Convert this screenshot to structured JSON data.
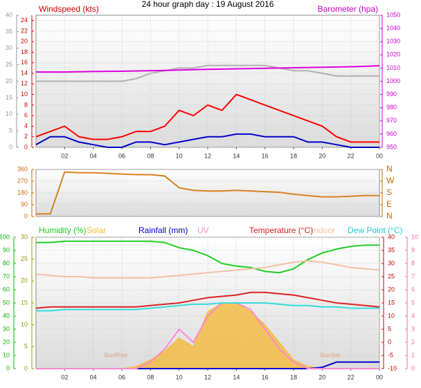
{
  "chart_data": [
    {
      "type": "line",
      "title": "24 hour graph day : 19 August 2016",
      "ylabel": "Windspeed (kts)",
      "y2label": "Barometer (hpa)",
      "x": [
        0,
        1,
        2,
        3,
        4,
        5,
        6,
        7,
        8,
        9,
        10,
        11,
        12,
        13,
        14,
        15,
        16,
        17,
        18,
        19,
        20,
        21,
        22,
        23,
        24
      ],
      "xlim": [
        0,
        24
      ],
      "xticks": [
        {
          "value": 2,
          "label": "02"
        },
        {
          "value": 4,
          "label": "04"
        },
        {
          "value": 6,
          "label": "06"
        },
        {
          "value": 8,
          "label": "08"
        },
        10,
        12,
        14,
        16,
        18,
        20,
        22,
        {
          "value": 24,
          "label": "00"
        }
      ],
      "ylim": [
        0,
        25
      ],
      "yticks": [
        0,
        2,
        4,
        6,
        8,
        10,
        12,
        14,
        16,
        18,
        20,
        22,
        24
      ],
      "y3lim": [
        0,
        40
      ],
      "y3ticks": [
        0,
        5,
        10,
        15,
        20,
        25,
        30,
        35,
        40
      ],
      "y2lim": [
        950,
        1050
      ],
      "y2ticks": [
        950,
        960,
        970,
        980,
        990,
        1000,
        1010,
        1020,
        1030,
        1040,
        1050
      ],
      "grid": true,
      "series": [
        {
          "color": "#b0b0b0",
          "axis": "y",
          "values": [
            12.5,
            12.5,
            12.5,
            12.5,
            12.5,
            12.5,
            12.5,
            13,
            14,
            14.5,
            15,
            15,
            15.5,
            15.5,
            15.5,
            15.5,
            15.5,
            15,
            14.5,
            14.5,
            14,
            13.5,
            13.5,
            13.5,
            13.5
          ]
        },
        {
          "color": "#dd00dd",
          "axis": "y2",
          "values": [
            1007,
            1007,
            1007,
            1007.2,
            1007.4,
            1007.5,
            1007.6,
            1007.8,
            1008,
            1008.2,
            1008.5,
            1008.8,
            1009,
            1009.2,
            1009.4,
            1009.6,
            1009.8,
            1010,
            1010.2,
            1010.4,
            1010.6,
            1010.8,
            1011,
            1011.3,
            1011.8
          ]
        },
        {
          "color": "#ff0000",
          "axis": "y",
          "values": [
            2,
            3,
            4,
            2,
            1.5,
            1.5,
            2,
            3,
            3,
            4,
            7,
            6,
            8,
            7,
            10,
            9,
            8,
            7,
            6,
            5,
            4,
            2,
            1,
            1,
            1
          ]
        },
        {
          "color": "#0000cc",
          "axis": "y",
          "values": [
            0.5,
            2,
            2,
            1,
            0.5,
            0,
            0,
            1,
            1,
            0.5,
            1,
            1.5,
            2,
            2,
            2.5,
            2.5,
            2,
            2,
            2,
            1,
            1,
            0.5,
            0,
            0,
            0
          ]
        }
      ]
    },
    {
      "type": "line",
      "x": [
        0,
        1,
        2,
        3,
        4,
        5,
        6,
        7,
        8,
        9,
        10,
        11,
        12,
        13,
        14,
        15,
        16,
        17,
        18,
        19,
        20,
        21,
        22,
        23,
        24
      ],
      "xlim": [
        0,
        24
      ],
      "ylim": [
        0,
        360
      ],
      "yticks": [
        0,
        90,
        180,
        270,
        360
      ],
      "y2lim": [
        0,
        360
      ],
      "y2ticks": [
        {
          "value": 0,
          "label": "N"
        },
        {
          "value": 90,
          "label": "E"
        },
        {
          "value": 180,
          "label": "S"
        },
        {
          "value": 270,
          "label": "W"
        },
        {
          "value": 360,
          "label": "N"
        }
      ],
      "grid": true,
      "series": [
        {
          "color": "#d98020",
          "axis": "y",
          "values": [
            20,
            20,
            340,
            335,
            335,
            330,
            325,
            320,
            320,
            310,
            220,
            200,
            195,
            195,
            200,
            195,
            190,
            185,
            170,
            160,
            150,
            150,
            155,
            160,
            160
          ]
        }
      ]
    },
    {
      "type": "line",
      "x": [
        0,
        1,
        2,
        3,
        4,
        5,
        6,
        7,
        8,
        9,
        10,
        11,
        12,
        13,
        14,
        15,
        16,
        17,
        18,
        19,
        20,
        21,
        22,
        23,
        24
      ],
      "xlim": [
        0,
        24
      ],
      "xticks": [
        {
          "value": 2,
          "label": "02"
        },
        {
          "value": 4,
          "label": "04"
        },
        {
          "value": 6,
          "label": "06"
        },
        {
          "value": 8,
          "label": "08"
        },
        10,
        12,
        14,
        16,
        18,
        20,
        22,
        {
          "value": 24,
          "label": "00"
        }
      ],
      "ylim": [
        0,
        100
      ],
      "yticks": [
        0,
        10,
        20,
        30,
        40,
        50,
        60,
        70,
        80,
        90,
        100
      ],
      "y3lim": [
        0,
        30
      ],
      "y3ticks": [
        0,
        5,
        10,
        15,
        20,
        25,
        30
      ],
      "y2lim": [
        -10,
        40
      ],
      "y2ticks": [
        -10,
        -5,
        0,
        5,
        10,
        15,
        20,
        25,
        30,
        35,
        40
      ],
      "y4lim": [
        0,
        10
      ],
      "y4ticks": [
        0,
        1,
        2,
        3,
        4,
        5,
        6,
        7,
        8,
        9,
        10
      ],
      "grid": true,
      "annotations": [
        "SunRise",
        "SunSet"
      ],
      "series": [
        {
          "name": "Humidity (%)",
          "color": "#22cc22",
          "axis": "y",
          "values": [
            96,
            96,
            97,
            97,
            97,
            97,
            97,
            97,
            97,
            96,
            92,
            90,
            86,
            80,
            78,
            77,
            74,
            73,
            76,
            83,
            88,
            91,
            93,
            94,
            94
          ]
        },
        {
          "name": "Solar",
          "color": "#f5b830",
          "axis": "y3",
          "fill": true,
          "values": [
            0,
            0,
            0,
            0,
            0,
            0,
            0,
            0.5,
            2,
            4,
            7,
            5,
            13,
            15,
            15,
            13,
            10,
            6,
            2,
            0.5,
            0,
            0,
            0,
            0,
            0
          ]
        },
        {
          "name": "Rainfall (mm)",
          "color": "#0000cc",
          "axis": "y3",
          "values": [
            0,
            0,
            0,
            0,
            0,
            0,
            0,
            0,
            0,
            0,
            0,
            0,
            0,
            0,
            0,
            0,
            0,
            0,
            0,
            0,
            0.3,
            1.5,
            1.5,
            1.5,
            1.5
          ]
        },
        {
          "name": "UV",
          "color": "#ff88cc",
          "axis": "y4",
          "values": [
            0,
            0,
            0,
            0,
            0,
            0,
            0,
            0,
            0.5,
            1.5,
            3,
            2,
            4,
            5,
            5,
            4.5,
            3,
            1.5,
            0.5,
            0,
            0,
            0,
            0,
            0,
            0
          ]
        },
        {
          "name": "Temperature (°C)",
          "color": "#dd2222",
          "axis": "y2",
          "values": [
            13,
            13.5,
            13.5,
            13.5,
            13.5,
            13.5,
            13.5,
            13.5,
            14,
            14.5,
            15,
            16,
            17,
            17.5,
            18,
            19,
            19,
            18.5,
            18,
            17,
            16,
            15,
            14.5,
            14,
            13.5
          ]
        },
        {
          "name": "Indoor",
          "color": "#f5c0a0",
          "axis": "y2",
          "values": [
            26,
            25.5,
            25,
            25,
            24.5,
            24.5,
            24.5,
            24.5,
            24.5,
            25,
            25.5,
            26,
            26.5,
            27,
            27.5,
            28,
            28.5,
            29.5,
            30.5,
            31,
            30.5,
            29.5,
            28.5,
            28,
            27.5
          ]
        },
        {
          "name": "Dew Point (°C)",
          "color": "#33dddd",
          "axis": "y2",
          "values": [
            12,
            12,
            12.5,
            12.5,
            12.5,
            12.5,
            12.5,
            12.5,
            13,
            13.5,
            14,
            14.5,
            14.5,
            15,
            15,
            15,
            15,
            14.5,
            14,
            14,
            13.5,
            13.5,
            13,
            13,
            13
          ]
        }
      ]
    }
  ]
}
